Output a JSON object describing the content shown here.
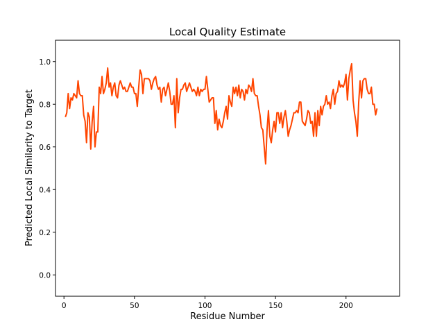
{
  "chart_data": {
    "type": "line",
    "title": "Local Quality Estimate",
    "xlabel": "Residue Number",
    "ylabel": "Predicted Local Similarity to Target",
    "xlim": [
      -6,
      238
    ],
    "ylim": [
      -0.1,
      1.1
    ],
    "xticks": [
      0,
      50,
      100,
      150,
      200
    ],
    "yticks": [
      0.0,
      0.2,
      0.4,
      0.6,
      0.8,
      1.0
    ],
    "xtick_labels": [
      "0",
      "50",
      "100",
      "150",
      "200"
    ],
    "ytick_labels": [
      "0.0",
      "0.2",
      "0.4",
      "0.6",
      "0.8",
      "1.0"
    ],
    "grid": false,
    "line_color": "#ff4500",
    "series": [
      {
        "x_start": 1,
        "values": [
          0.74,
          0.76,
          0.85,
          0.78,
          0.83,
          0.82,
          0.85,
          0.84,
          0.83,
          0.91,
          0.85,
          0.84,
          0.84,
          0.75,
          0.72,
          0.62,
          0.76,
          0.74,
          0.59,
          0.72,
          0.79,
          0.6,
          0.67,
          0.67,
          0.88,
          0.85,
          0.93,
          0.85,
          0.87,
          0.9,
          0.97,
          0.88,
          0.9,
          0.84,
          0.88,
          0.9,
          0.84,
          0.83,
          0.89,
          0.91,
          0.89,
          0.87,
          0.88,
          0.86,
          0.86,
          0.88,
          0.9,
          0.88,
          0.88,
          0.85,
          0.85,
          0.79,
          0.88,
          0.96,
          0.94,
          0.85,
          0.92,
          0.92,
          0.92,
          0.92,
          0.91,
          0.87,
          0.9,
          0.92,
          0.93,
          0.89,
          0.87,
          0.88,
          0.81,
          0.87,
          0.88,
          0.84,
          0.87,
          0.9,
          0.86,
          0.8,
          0.8,
          0.84,
          0.69,
          0.92,
          0.76,
          0.83,
          0.87,
          0.87,
          0.89,
          0.9,
          0.86,
          0.88,
          0.9,
          0.88,
          0.86,
          0.87,
          0.86,
          0.84,
          0.88,
          0.84,
          0.87,
          0.86,
          0.87,
          0.87,
          0.93,
          0.87,
          0.81,
          0.82,
          0.83,
          0.83,
          0.71,
          0.77,
          0.68,
          0.73,
          0.7,
          0.69,
          0.72,
          0.76,
          0.79,
          0.73,
          0.84,
          0.81,
          0.79,
          0.88,
          0.85,
          0.88,
          0.84,
          0.89,
          0.83,
          0.87,
          0.86,
          0.82,
          0.87,
          0.85,
          0.89,
          0.88,
          0.86,
          0.92,
          0.85,
          0.84,
          0.84,
          0.79,
          0.75,
          0.69,
          0.68,
          0.6,
          0.52,
          0.68,
          0.77,
          0.65,
          0.62,
          0.68,
          0.72,
          0.67,
          0.76,
          0.76,
          0.71,
          0.76,
          0.69,
          0.74,
          0.77,
          0.72,
          0.65,
          0.68,
          0.7,
          0.73,
          0.76,
          0.76,
          0.77,
          0.76,
          0.81,
          0.81,
          0.72,
          0.71,
          0.7,
          0.73,
          0.77,
          0.76,
          0.71,
          0.72,
          0.65,
          0.76,
          0.65,
          0.77,
          0.7,
          0.79,
          0.75,
          0.79,
          0.8,
          0.84,
          0.8,
          0.81,
          0.78,
          0.84,
          0.87,
          0.8,
          0.85,
          0.86,
          0.91,
          0.88,
          0.89,
          0.88,
          0.9,
          0.94,
          0.82,
          0.92,
          0.96,
          0.99,
          0.82,
          0.76,
          0.72,
          0.65,
          0.81,
          0.91,
          0.83,
          0.91,
          0.92,
          0.92,
          0.87,
          0.85,
          0.85,
          0.88,
          0.8,
          0.8,
          0.75,
          0.78
        ]
      }
    ]
  }
}
